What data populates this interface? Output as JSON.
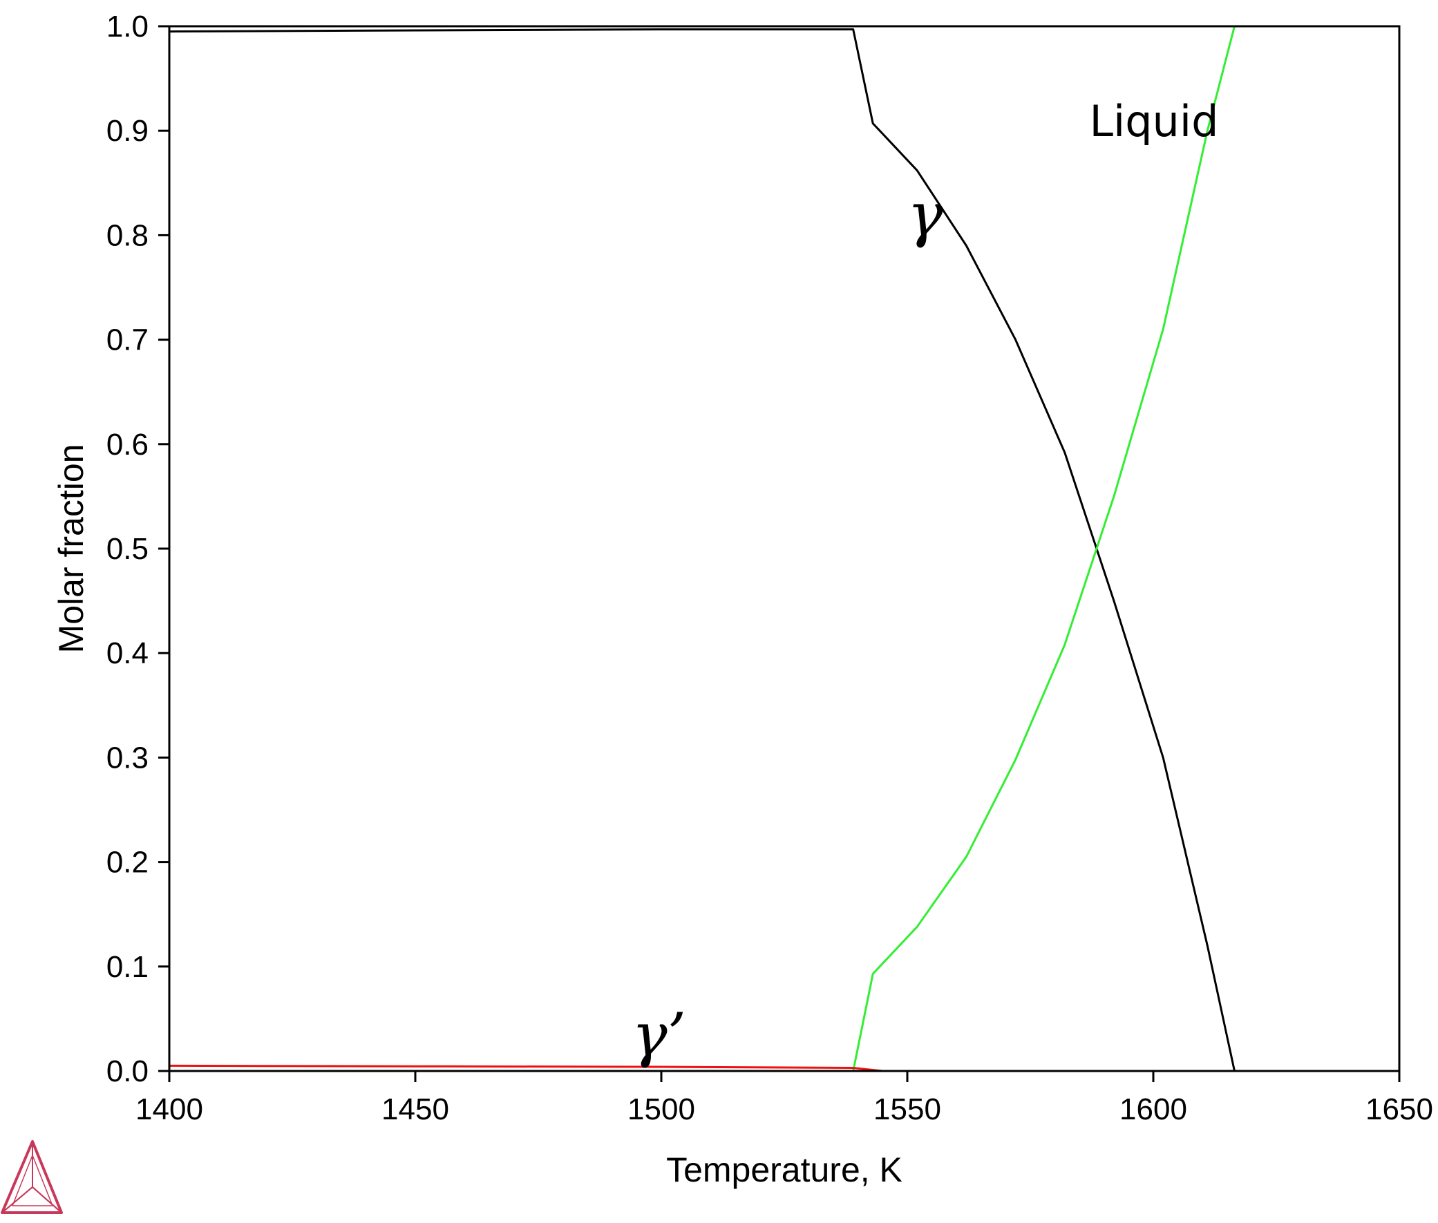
{
  "chart_data": {
    "type": "line",
    "title": "",
    "xlabel": "Temperature, K",
    "ylabel": "Molar fraction",
    "xlim": [
      1400,
      1650
    ],
    "ylim": [
      0,
      1
    ],
    "x_ticks": [
      "1400",
      "1450",
      "1500",
      "1550",
      "1600",
      "1650"
    ],
    "y_ticks": [
      "0.0",
      "0.1",
      "0.2",
      "0.3",
      "0.4",
      "0.5",
      "0.6",
      "0.7",
      "0.8",
      "0.9",
      "1.0"
    ],
    "grid": false,
    "legend": "none",
    "series": [
      {
        "name": "γ",
        "color": "#000000",
        "points": [
          [
            1400,
            0.995
          ],
          [
            1450,
            0.996
          ],
          [
            1500,
            0.997
          ],
          [
            1539,
            0.997
          ],
          [
            1543,
            0.907
          ],
          [
            1552,
            0.862
          ],
          [
            1562,
            0.79
          ],
          [
            1572,
            0.7
          ],
          [
            1582,
            0.592
          ],
          [
            1592,
            0.45
          ],
          [
            1602,
            0.3
          ],
          [
            1611,
            0.12
          ],
          [
            1616.5,
            0.0
          ]
        ]
      },
      {
        "name": "Liquid",
        "color": "#33ee33",
        "points": [
          [
            1539,
            0.0
          ],
          [
            1543,
            0.093
          ],
          [
            1552,
            0.138
          ],
          [
            1562,
            0.205
          ],
          [
            1572,
            0.298
          ],
          [
            1582,
            0.408
          ],
          [
            1592,
            0.55
          ],
          [
            1602,
            0.71
          ],
          [
            1611,
            0.9
          ],
          [
            1616.5,
            1.0
          ]
        ]
      },
      {
        "name": "γ'",
        "color": "#ee1111",
        "points": [
          [
            1400,
            0.005
          ],
          [
            1450,
            0.0045
          ],
          [
            1500,
            0.004
          ],
          [
            1539,
            0.003
          ],
          [
            1545,
            0.0
          ]
        ]
      }
    ],
    "annotations": [
      {
        "text": "Liquid",
        "x": 1587,
        "y": 0.895,
        "style": "plain"
      },
      {
        "text": "γ",
        "x": 1550,
        "y": 0.8,
        "style": "greek"
      },
      {
        "text": "γ’",
        "x": 1494,
        "y": 0.015,
        "style": "greek"
      }
    ]
  },
  "logo": {
    "name": "tetrahedron-logo-icon",
    "color": "#c8385a"
  }
}
